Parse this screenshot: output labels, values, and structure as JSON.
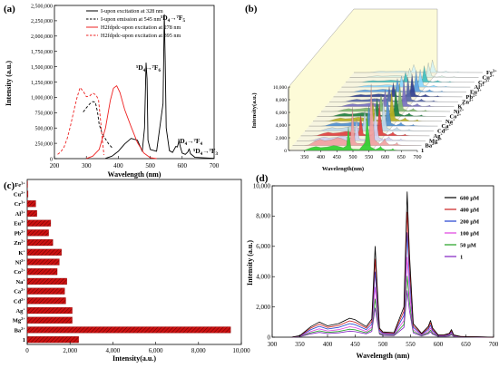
{
  "panels": {
    "a": {
      "label": "(a)",
      "xlabel": "Wavelength (nm)",
      "ylabel": "Intensity (a.u.)"
    },
    "b": {
      "label": "(b)",
      "xlabel": "Wavelength(nm)",
      "ylabel": "Intensity(a.u.)"
    },
    "c": {
      "label": "(c)",
      "xlabel": "Intensity(a.u.)"
    },
    "d": {
      "label": "(d)",
      "xlabel": "Wavelength (nm)",
      "ylabel": "Intensity (a.u.)"
    }
  },
  "chart_data": [
    {
      "id": "a",
      "type": "line",
      "xlim": [
        200,
        700
      ],
      "ylim": [
        0,
        2500000
      ],
      "xticks": [
        200,
        300,
        400,
        500,
        600,
        700
      ],
      "yticks": [
        0,
        250000,
        500000,
        750000,
        1000000,
        1250000,
        1500000,
        1750000,
        2000000,
        2250000,
        2500000
      ],
      "yticklabels": [
        "0",
        "250,000",
        "500,000",
        "750,000",
        "1,000,000",
        "1,250,000",
        "1,500,000",
        "1,750,000",
        "2,000,000",
        "2,250,000",
        "2,500,000"
      ],
      "series": [
        {
          "name": "I-upon excitation at 328 nm",
          "color": "#000000",
          "style": "solid",
          "x": [
            360,
            380,
            400,
            420,
            440,
            460,
            475,
            482,
            487,
            490,
            493,
            500,
            520,
            540,
            544,
            547,
            550,
            560,
            570,
            580,
            585,
            590,
            595,
            600,
            610,
            618,
            622,
            626,
            640,
            700
          ],
          "y": [
            5000,
            40000,
            120000,
            240000,
            330000,
            300000,
            120000,
            500000,
            1560000,
            1300000,
            300000,
            150000,
            120000,
            900000,
            2350000,
            1600000,
            500000,
            130000,
            100000,
            200000,
            190000,
            290000,
            180000,
            90000,
            70000,
            110000,
            160000,
            80000,
            20000,
            5000
          ]
        },
        {
          "name": "I-upon emission at 545 nm",
          "color": "#000000",
          "style": "dashed",
          "x": [
            290,
            300,
            310,
            320,
            328,
            335,
            340,
            350,
            360,
            370,
            380
          ],
          "y": [
            760000,
            830000,
            890000,
            930000,
            920000,
            760000,
            560000,
            400000,
            320000,
            240000,
            180000
          ]
        },
        {
          "name": "H2fdpdc-upon excitation at 278 nm",
          "color": "#ee2222",
          "style": "solid",
          "x": [
            300,
            320,
            340,
            360,
            375,
            385,
            395,
            405,
            420,
            440,
            460,
            480,
            500,
            520
          ],
          "y": [
            2000,
            40000,
            150000,
            500000,
            950000,
            1150000,
            1190000,
            1080000,
            800000,
            520000,
            260000,
            90000,
            15000,
            0
          ]
        },
        {
          "name": "H2fdpdc-upon excitation at 395 nm",
          "color": "#ee2222",
          "style": "dashed",
          "x": [
            210,
            220,
            230,
            240,
            250,
            260,
            270,
            280,
            290,
            300,
            310,
            320,
            330,
            338,
            345,
            350,
            355
          ],
          "y": [
            70000,
            110000,
            190000,
            330000,
            530000,
            760000,
            980000,
            1160000,
            1100000,
            1010000,
            1020000,
            1070000,
            1040000,
            960000,
            600000,
            300000,
            60000
          ]
        }
      ],
      "annotations": [
        "5D4→7F6",
        "5D4→7F5",
        "5D4→7F4",
        "5D4→7F3"
      ]
    },
    {
      "id": "b",
      "type": "area",
      "xlim": [
        300,
        700
      ],
      "ylim": [
        0,
        10000
      ],
      "xticks": [
        350,
        400,
        450,
        500,
        550,
        600,
        650,
        700
      ],
      "yticks": [
        0,
        2000,
        4000,
        6000,
        8000,
        10000
      ],
      "yticklabels": [
        "0",
        "2,000",
        "4,000",
        "6,000",
        "8,000",
        "10,000"
      ],
      "series_labels": [
        "Fe3+",
        "Cu2+",
        "Cr3+",
        "Al3+",
        "Eu3+",
        "Pb2+",
        "Zn2+",
        "K+",
        "Ni2+",
        "Co2+",
        "Na+",
        "Ca2+",
        "Cd2+",
        "Ag+",
        "Mg2+",
        "Ba2+",
        "1"
      ],
      "series_colors": [
        "#d8f4f4",
        "#d8f0e4",
        "#40c0c0",
        "#8cd8ff",
        "#5aa0e0",
        "#304090",
        "#5868a8",
        "#7870c0",
        "#80b870",
        "#208040",
        "#b8b020",
        "#5090d0",
        "#c0d8e8",
        "#e04040",
        "#d0d0f0",
        "#f0a0a0",
        "#30d030"
      ],
      "series_peaks": [
        2000,
        2300,
        2600,
        2800,
        3400,
        3600,
        3900,
        4300,
        4400,
        4600,
        5000,
        5100,
        5200,
        5400,
        5500,
        9700,
        6000
      ]
    },
    {
      "id": "c",
      "type": "bar",
      "orientation": "horizontal",
      "xlim": [
        0,
        10000
      ],
      "xticks": [
        0,
        2000,
        4000,
        6000,
        8000,
        10000
      ],
      "xticklabels": [
        "0",
        "2,000",
        "4,000",
        "6,000",
        "8,000",
        "10,000"
      ],
      "categories": [
        "Fe3+",
        "Cu2+",
        "Cr3+",
        "Al3+",
        "Eu3+",
        "Pb2+",
        "Zn2+",
        "K+",
        "Ni2+",
        "Co2+",
        "Na+",
        "Ca2+",
        "Cd2+",
        "Ag+",
        "Mg2+",
        "Ba2+",
        "1"
      ],
      "values": [
        20,
        40,
        400,
        450,
        1100,
        1000,
        1200,
        1600,
        1500,
        1400,
        1850,
        1750,
        1800,
        2100,
        2100,
        9500,
        2400
      ],
      "bar_color": "#cc1111"
    },
    {
      "id": "d",
      "type": "line",
      "xlim": [
        300,
        700
      ],
      "ylim": [
        0,
        10000
      ],
      "xticks": [
        300,
        350,
        400,
        450,
        500,
        550,
        600,
        650,
        700
      ],
      "yticks": [
        0,
        2000,
        4000,
        6000,
        8000,
        10000
      ],
      "yticklabels": [
        "0",
        "2,000",
        "4,000",
        "6,000",
        "8,000",
        "10,000"
      ],
      "series": [
        {
          "name": "600 μM",
          "color": "#000000",
          "scale": 1.0
        },
        {
          "name": "400 μM",
          "color": "#cc2020",
          "scale": 0.86
        },
        {
          "name": "200 μM",
          "color": "#2040d0",
          "scale": 0.72
        },
        {
          "name": "100 μM",
          "color": "#e040e0",
          "scale": 0.55
        },
        {
          "name": "50 μM",
          "color": "#20a020",
          "scale": 0.42
        },
        {
          "name": "1",
          "color": "#8020c0",
          "scale": 0.32
        }
      ],
      "base_profile": {
        "x": [
          335,
          350,
          370,
          385,
          400,
          420,
          440,
          450,
          470,
          480,
          486,
          490,
          494,
          500,
          520,
          538,
          544,
          548,
          555,
          570,
          582,
          586,
          590,
          600,
          610,
          620,
          624,
          628,
          640,
          700
        ],
        "y": [
          0,
          100,
          700,
          1000,
          750,
          900,
          1250,
          1150,
          700,
          1200,
          6000,
          3200,
          600,
          350,
          300,
          2000,
          9600,
          5500,
          900,
          250,
          700,
          1100,
          600,
          150,
          150,
          250,
          500,
          150,
          50,
          0
        ]
      }
    }
  ]
}
